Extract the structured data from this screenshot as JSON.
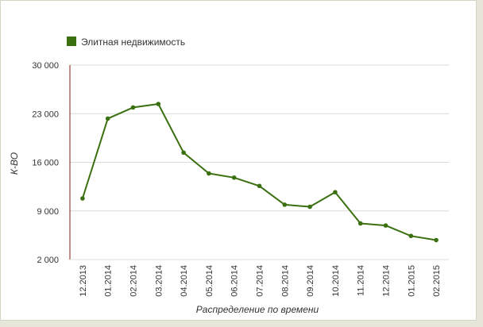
{
  "chart_data": {
    "type": "line",
    "categories": [
      "12.2013",
      "01.2014",
      "02.2014",
      "03.2014",
      "04.2014",
      "05.2014",
      "06.2014",
      "07.2014",
      "08.2014",
      "09.2014",
      "10.2014",
      "11.2014",
      "12.2014",
      "01.2015",
      "02.2015"
    ],
    "series": [
      {
        "name": "Элитная недвижимость",
        "color": "#3a7010",
        "values": [
          10800,
          22300,
          23900,
          24400,
          17400,
          14400,
          13800,
          12600,
          9900,
          9600,
          11700,
          7200,
          6900,
          5400,
          4800
        ]
      }
    ],
    "xlabel": "Распределение по времени",
    "ylabel": "К-ВО",
    "ylim": [
      2000,
      30000
    ],
    "yticks": [
      2000,
      9000,
      16000,
      23000,
      30000
    ],
    "ytick_labels": [
      "2 000",
      "9 000",
      "16 000",
      "23 000",
      "30 000"
    ],
    "grid": "horizontal",
    "legend": "top-left",
    "axis_color": "#8b1a1a",
    "grid_color": "#dcdcdc"
  }
}
